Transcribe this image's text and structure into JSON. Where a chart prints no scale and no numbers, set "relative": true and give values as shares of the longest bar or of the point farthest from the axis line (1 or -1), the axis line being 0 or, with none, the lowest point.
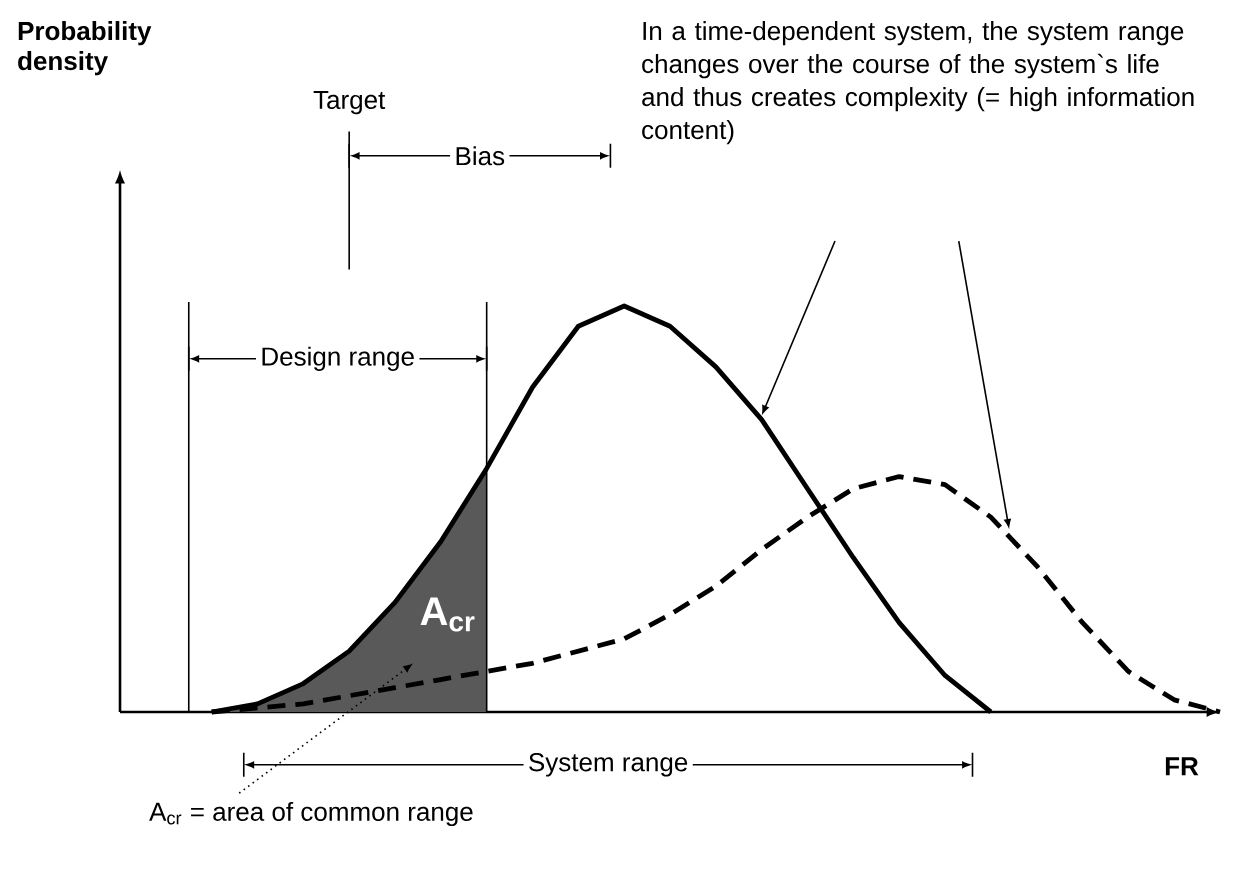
{
  "chart_data": {
    "type": "line",
    "relative": true,
    "xlabel": "FR",
    "categories": [
      null,
      null,
      null,
      null,
      null,
      null,
      null,
      null,
      null,
      null,
      null,
      null,
      null,
      null,
      null,
      null,
      null,
      null,
      null,
      null,
      null,
      null,
      null,
      null,
      null
    ],
    "series": [
      {
        "color": "#000000",
        "line_style": "solid",
        "values": [
          null,
          null,
          0,
          0.02,
          0.07,
          0.15,
          0.27,
          0.42,
          0.6,
          0.8,
          0.95,
          1,
          0.95,
          0.85,
          0.72,
          0.55,
          0.38,
          0.22,
          0.09,
          0,
          null,
          null,
          null,
          null,
          null
        ]
      },
      {
        "color": "#000000",
        "line_style": "dashed",
        "values": [
          null,
          null,
          0,
          0.01,
          0.02,
          0.04,
          0.06,
          0.08,
          0.1,
          0.12,
          0.15,
          0.18,
          0.24,
          0.31,
          0.4,
          0.48,
          0.55,
          0.58,
          0.56,
          0.48,
          0.36,
          0.22,
          0.1,
          0.03,
          0
        ]
      },
      {
        "type": "area",
        "color": "#595959",
        "values": [
          null,
          null,
          0,
          0.02,
          0.07,
          0.15,
          0.27,
          0.42,
          0.6,
          null,
          null,
          null,
          null,
          null,
          null,
          null,
          null,
          null,
          null,
          null,
          null,
          null,
          null,
          null,
          null
        ]
      }
    ],
    "annotations": [
      "Probability density",
      "In a time-dependent system, the system range changes over the course of the system`s life and thus creates complexity (= high information content)",
      "Target",
      "Bias",
      "Design range",
      "System range",
      "A$_{cr}$",
      "A$_{cr}$ = area of common range"
    ],
    "marker": "none"
  }
}
